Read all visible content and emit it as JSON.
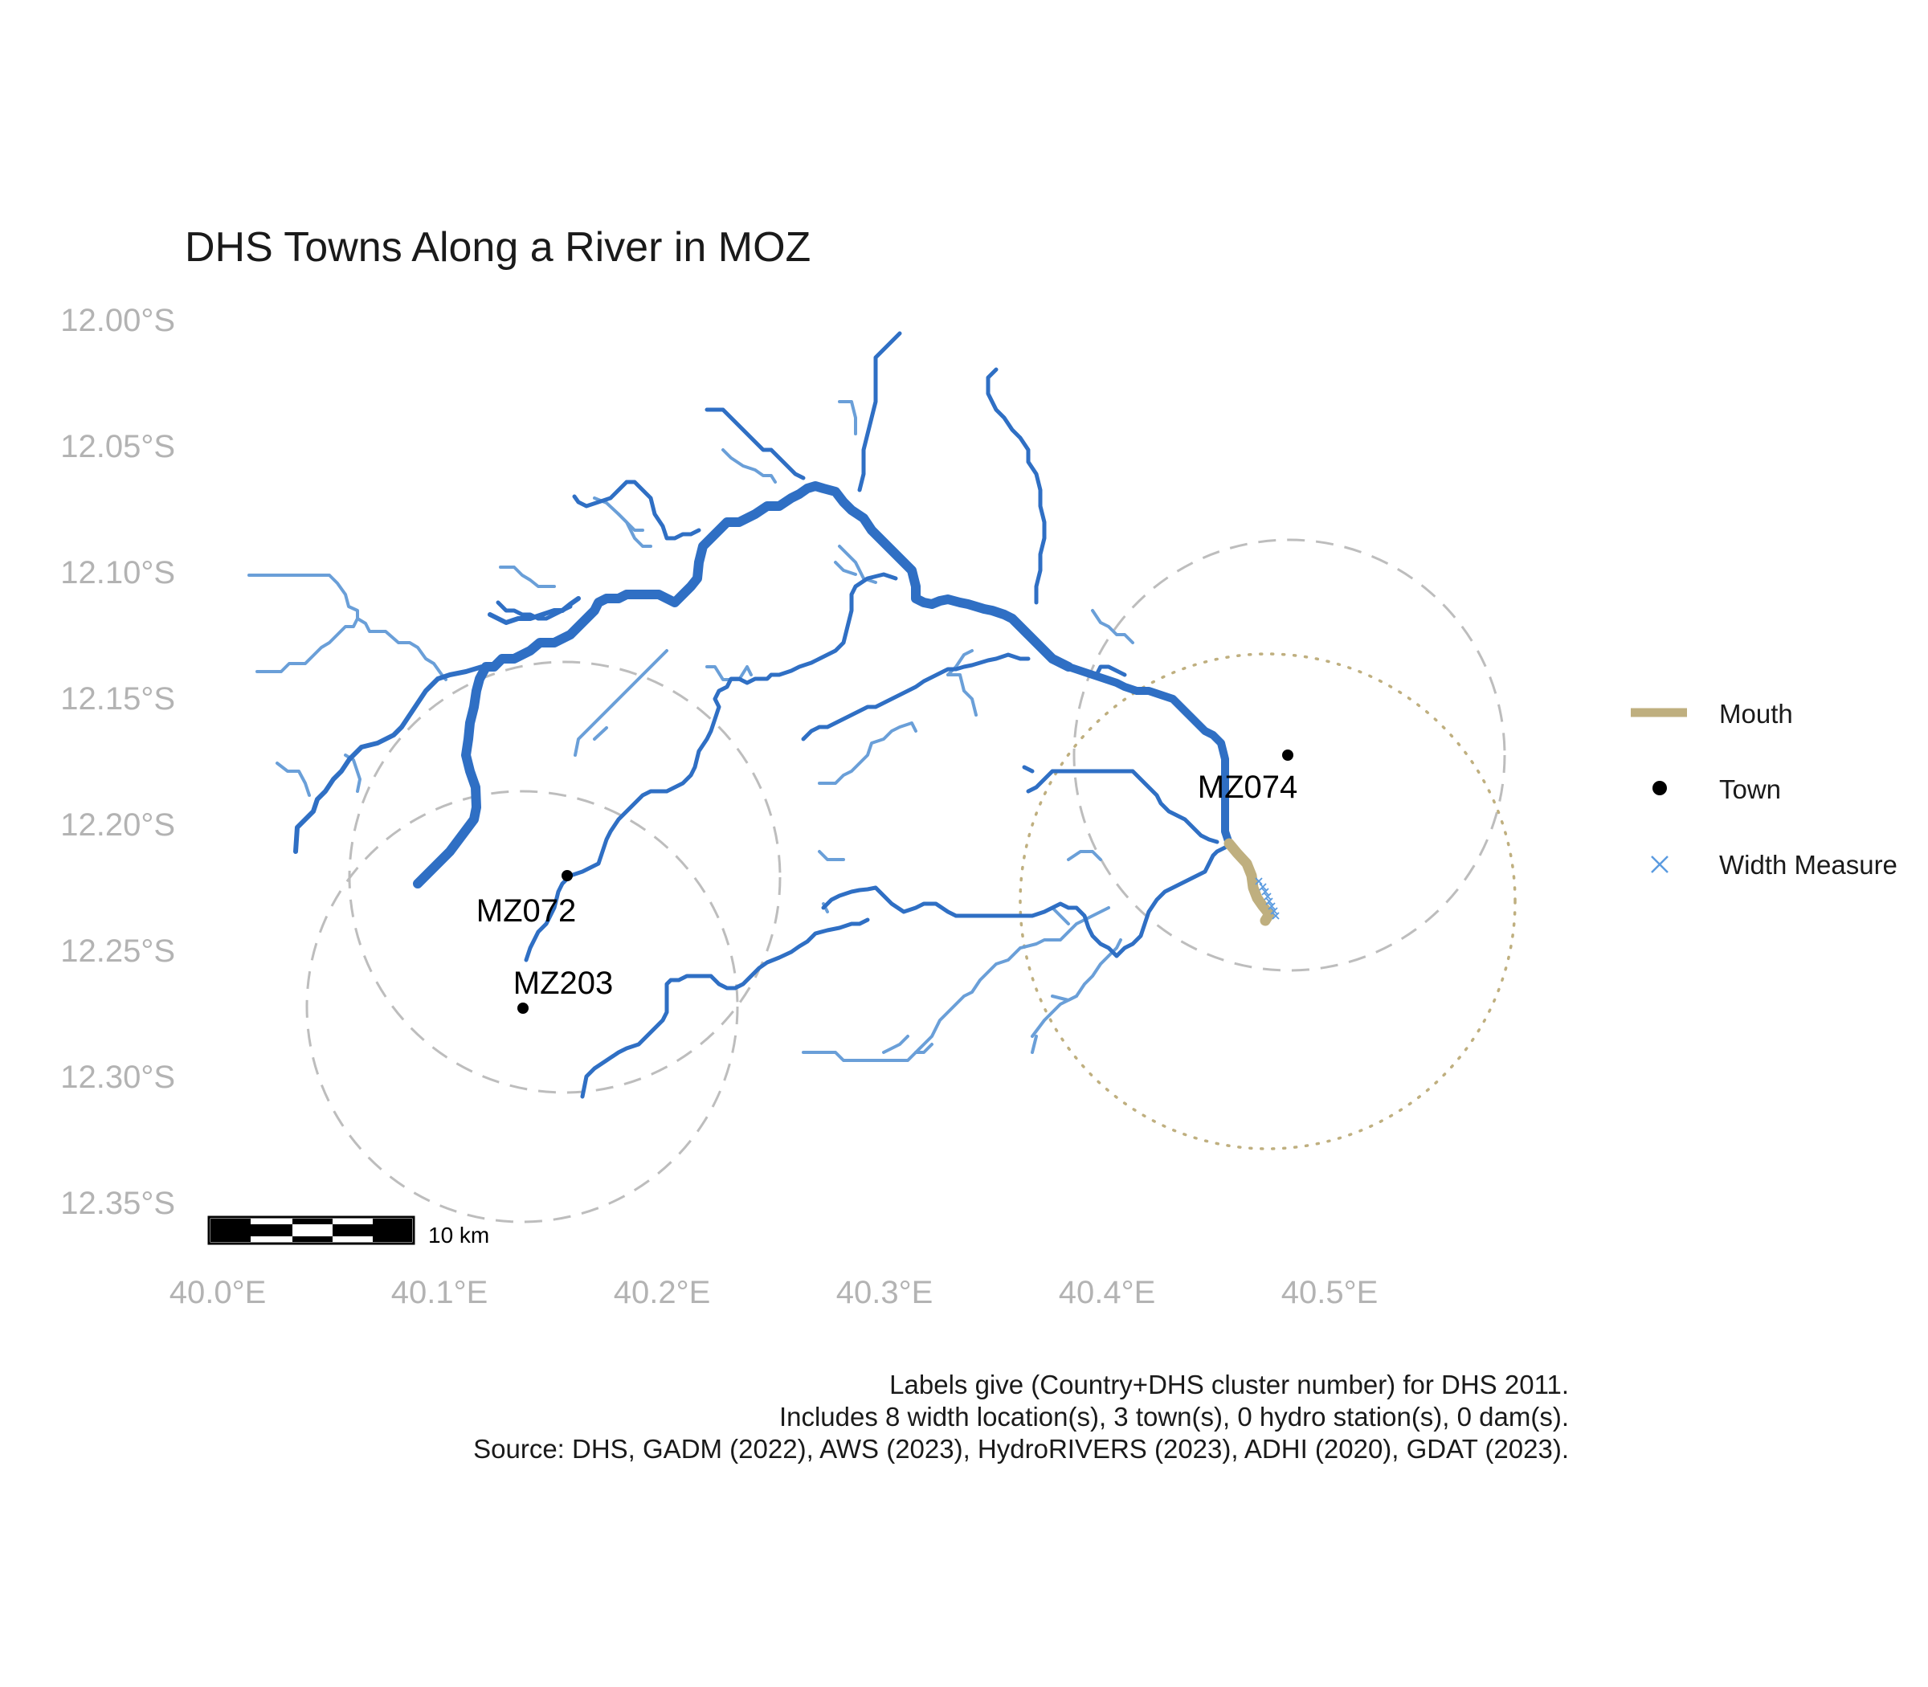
{
  "title": "DHS Towns Along a River in MOZ",
  "axes": {
    "x_ticks": [
      "40.0°E",
      "40.1°E",
      "40.2°E",
      "40.3°E",
      "40.4°E",
      "40.5°E"
    ],
    "y_ticks": [
      "12.00°S",
      "12.05°S",
      "12.10°S",
      "12.15°S",
      "12.20°S",
      "12.25°S",
      "12.30°S",
      "12.35°S"
    ]
  },
  "towns": [
    {
      "label": "MZ072",
      "lon": 40.149,
      "lat": -12.219
    },
    {
      "label": "MZ203",
      "lon": 40.129,
      "lat": -12.272
    },
    {
      "label": "MZ074",
      "lon": 40.473,
      "lat": -12.172
    }
  ],
  "legend": {
    "items": [
      {
        "label": "Mouth",
        "symbol": "line",
        "color": "#BFAF7F"
      },
      {
        "label": "Town",
        "symbol": "point",
        "color": "#000000"
      },
      {
        "label": "Width Measure",
        "symbol": "cross",
        "color": "#5B9BE0"
      }
    ]
  },
  "scale_bar": {
    "label": "10 km"
  },
  "caption": [
    "Labels give (Country+DHS cluster number) for DHS 2011.",
    "Includes 8 width location(s), 3 town(s), 0 hydro station(s), 0 dam(s).",
    "Source: DHS, GADM (2022), AWS (2023), HydroRIVERS (2023), ADHI (2020), GDAT (2023)."
  ],
  "colors": {
    "river_main": "#2F6FC4",
    "river_minor": "#6A9FD8",
    "mouth": "#BFAF7F",
    "buffer_dashed": "#BDBDBD",
    "buffer_dotted": "#BFAF7F",
    "town": "#000000",
    "axis_text": "#B3B3B3"
  }
}
